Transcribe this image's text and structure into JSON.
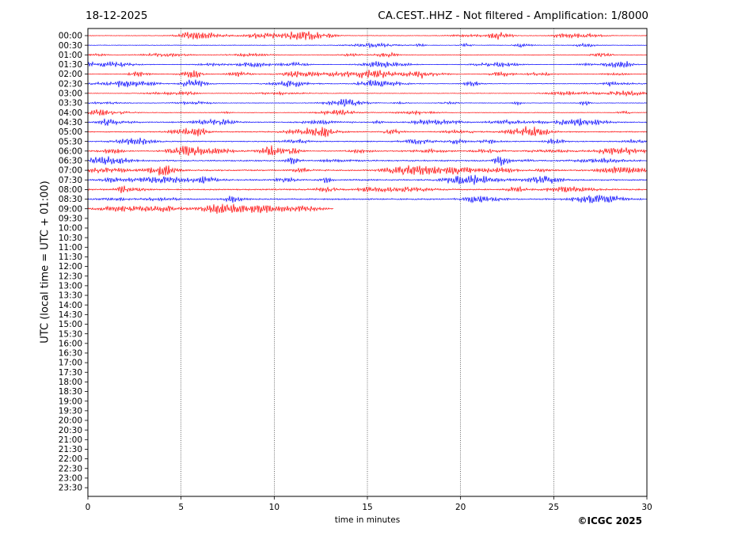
{
  "header": {
    "date": "18-12-2025",
    "title": "CA.CEST..HHZ - Not filtered - Amplification: 1/8000"
  },
  "footer": {
    "copyright": "©ICGC 2025"
  },
  "chart_data": {
    "type": "line",
    "title": "CA.CEST..HHZ - Not filtered - Amplification: 1/8000",
    "xlabel": "time in minutes",
    "ylabel": "UTC (local time = UTC + 01:00)",
    "xlim": [
      0,
      30
    ],
    "x_ticks": [
      0,
      5,
      10,
      15,
      20,
      25,
      30
    ],
    "x_tick_labels": [
      "0",
      "5",
      "10",
      "15",
      "20",
      "25",
      "30"
    ],
    "vertical_grid": true,
    "row_labels": [
      "00:00",
      "00:30",
      "01:00",
      "01:30",
      "02:00",
      "02:30",
      "03:00",
      "03:30",
      "04:00",
      "04:30",
      "05:00",
      "05:30",
      "06:00",
      "06:30",
      "07:00",
      "07:30",
      "08:00",
      "08:30",
      "09:00",
      "09:30",
      "10:00",
      "10:30",
      "11:00",
      "11:30",
      "12:00",
      "12:30",
      "13:00",
      "13:30",
      "14:00",
      "14:30",
      "15:00",
      "15:30",
      "16:00",
      "16:30",
      "17:00",
      "17:30",
      "18:00",
      "18:30",
      "19:00",
      "19:30",
      "20:00",
      "20:30",
      "21:00",
      "21:30",
      "22:00",
      "22:30",
      "23:00",
      "23:30"
    ],
    "trace_colors": [
      "#ff0000",
      "#0000ff"
    ],
    "traces_recorded": 19,
    "last_trace_end_minute": 13.2
  }
}
